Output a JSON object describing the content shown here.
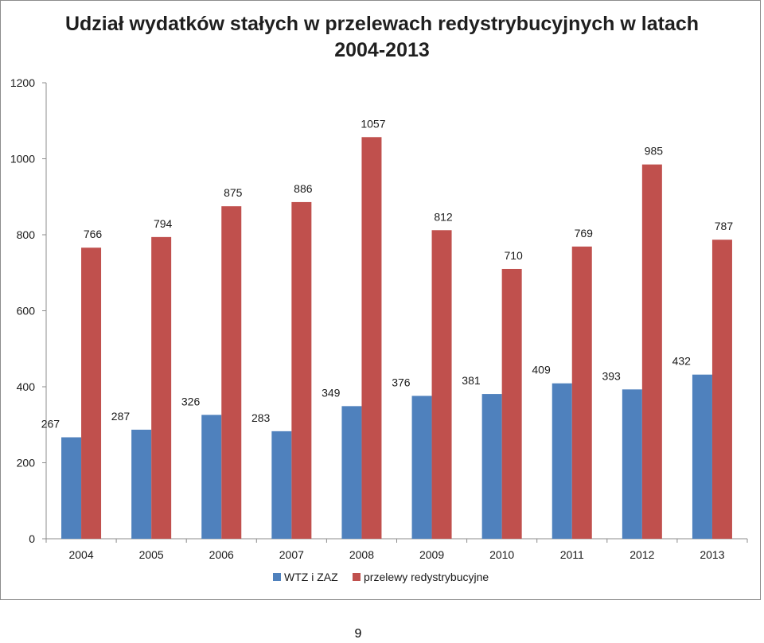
{
  "chart_data": {
    "type": "bar",
    "title": "Udział wydatków stałych w przelewach redystrybucyjnych w latach 2004-2013",
    "categories": [
      "2004",
      "2005",
      "2006",
      "2007",
      "2008",
      "2009",
      "2010",
      "2011",
      "2012",
      "2013"
    ],
    "series": [
      {
        "name": "WTZ i ZAZ",
        "color": "#4f81bd",
        "values": [
          267,
          287,
          326,
          283,
          349,
          376,
          381,
          409,
          393,
          432
        ]
      },
      {
        "name": "przelewy redystrybucyjne",
        "color": "#c0504d",
        "values": [
          766,
          794,
          875,
          886,
          1057,
          812,
          710,
          769,
          985,
          787
        ]
      }
    ],
    "ylim": [
      0,
      1200
    ],
    "yticks": [
      0,
      200,
      400,
      600,
      800,
      1000,
      1200
    ],
    "grid": false,
    "legend_position": "bottom"
  },
  "page_number": "9"
}
